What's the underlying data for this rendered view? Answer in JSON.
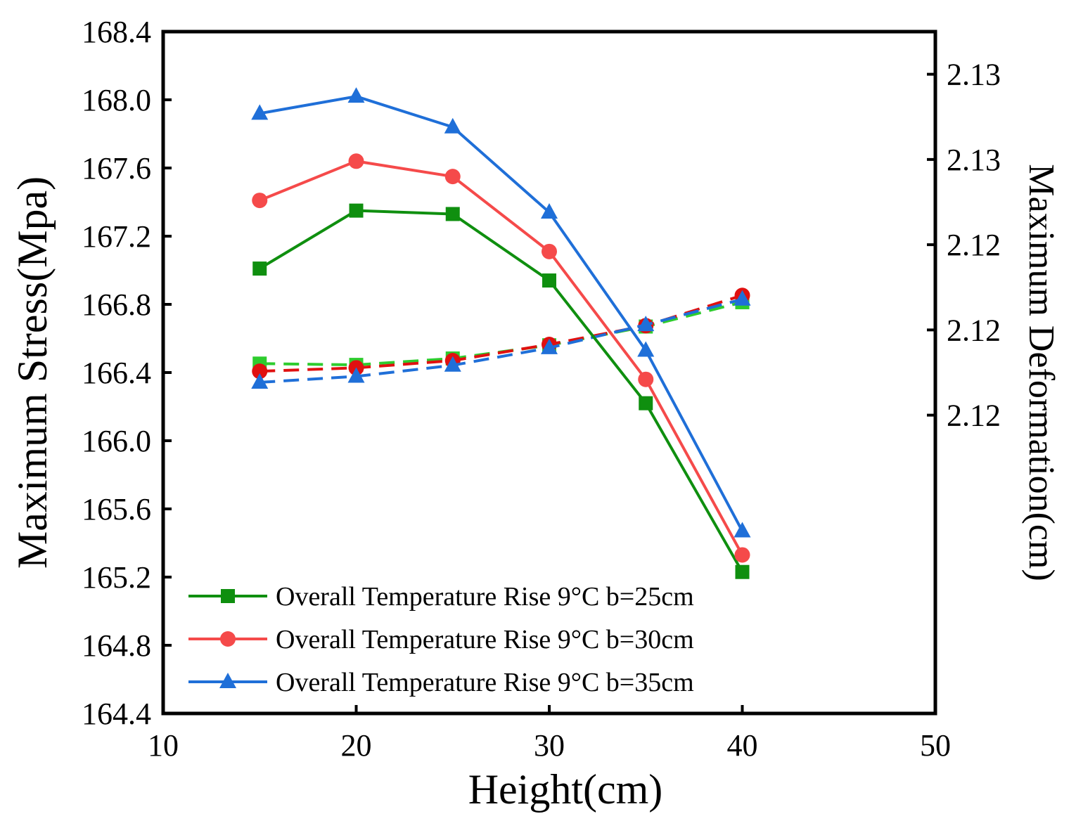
{
  "chart_data": {
    "type": "line",
    "xlabel": "Height(cm)",
    "ylabel": "Maximum Stress(Mpa)",
    "y2label": "Maximum Deformation(cm)",
    "xlim": [
      10,
      50
    ],
    "xticks": [
      10,
      20,
      30,
      40,
      50
    ],
    "ylim": [
      164.4,
      168.4
    ],
    "yticks": [
      "168.4",
      "168.0",
      "167.6",
      "167.2",
      "166.8",
      "166.4",
      "166.0",
      "165.6",
      "165.2",
      "164.8",
      "164.4"
    ],
    "y2lim": [
      2.114,
      2.13
    ],
    "y2ticks": [
      {
        "value": 2.129,
        "label": "2.13"
      },
      {
        "value": 2.127,
        "label": "2.13"
      },
      {
        "value": 2.125,
        "label": "2.12"
      },
      {
        "value": 2.123,
        "label": "2.12"
      },
      {
        "value": 2.121,
        "label": "2.12"
      }
    ],
    "x": [
      15,
      20,
      25,
      30,
      35,
      40
    ],
    "legend_position": "bottom-left",
    "series": [
      {
        "name": "Overall Temperature Rise 9°C b=25cm",
        "color": "#0f8f0f",
        "dash_color": "#2ecc2e",
        "marker": "square",
        "stress": [
          167.01,
          167.35,
          167.33,
          166.94,
          166.22,
          165.23
        ],
        "deformation": [
          2.12221,
          2.12218,
          2.12233,
          2.12264,
          2.12308,
          2.12365
        ]
      },
      {
        "name": "Overall Temperature Rise 9°C b=30cm",
        "color": "#f54a4a",
        "dash_color": "#e01010",
        "marker": "circle",
        "stress": [
          167.41,
          167.64,
          167.55,
          167.11,
          166.36,
          165.33
        ],
        "deformation": [
          2.12203,
          2.12211,
          2.12228,
          2.12266,
          2.1231,
          2.12381
        ]
      },
      {
        "name": "Overall Temperature Rise 9°C b=35cm",
        "color": "#1f6fd8",
        "dash_color": "#1f6fd8",
        "marker": "triangle",
        "stress": [
          167.92,
          168.02,
          167.84,
          167.34,
          166.53,
          165.47
        ],
        "deformation": [
          2.12177,
          2.12191,
          2.12217,
          2.12258,
          2.12312,
          2.12372
        ]
      }
    ]
  }
}
